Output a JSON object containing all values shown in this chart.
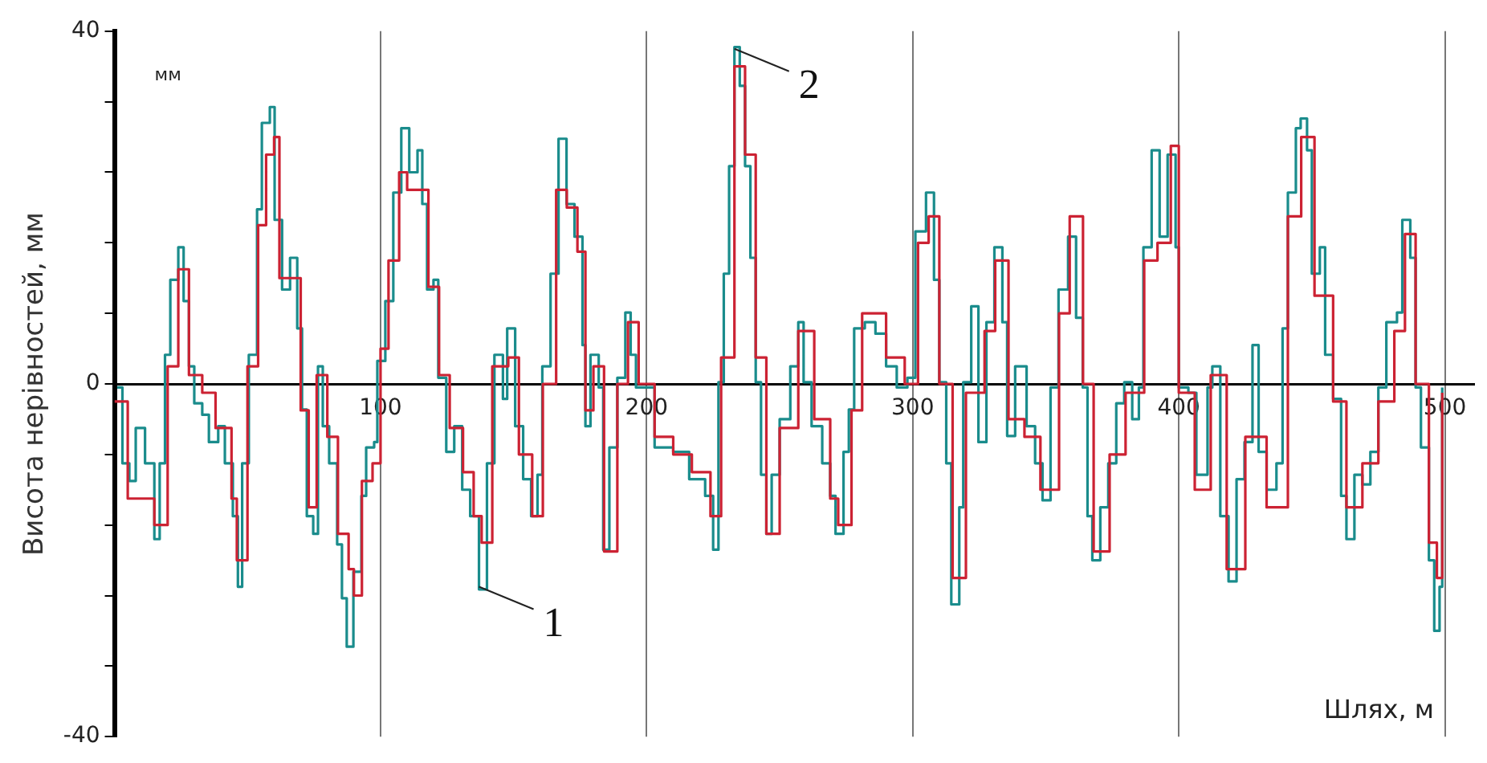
{
  "chart_data": {
    "type": "step",
    "ylabel": "Висота нерівностей, мм",
    "xlabel": "Шлях, м",
    "xlim": [
      0,
      511
    ],
    "xticks": [
      100,
      200,
      300,
      400,
      500
    ],
    "ylim": [
      -40,
      40
    ],
    "yticks": [
      -40,
      {
        "value": -32,
        "label": null
      },
      {
        "value": -24,
        "label": null
      },
      {
        "value": -16,
        "label": null
      },
      {
        "value": -8,
        "label": null
      },
      0,
      {
        "value": 8,
        "label": null
      },
      {
        "value": 16,
        "label": null
      },
      {
        "value": 24,
        "label": null
      },
      {
        "value": 32,
        "label": null
      },
      40
    ],
    "grid": "x",
    "legend": false,
    "marker": "none",
    "line_style": "solid",
    "annotations": [
      "мм",
      {
        "text": "1",
        "x": 137,
        "y": -23
      },
      {
        "text": "2",
        "x": 233,
        "y": 38
      }
    ],
    "series": [
      {
        "color": "#cc2233",
        "x": [
          0,
          5,
          15,
          20,
          24,
          28,
          33,
          38,
          44,
          46,
          50,
          54,
          57,
          60,
          62,
          66,
          70,
          73,
          76,
          80,
          84,
          88,
          90,
          93,
          97,
          100,
          103,
          107,
          110,
          114,
          118,
          122,
          126,
          131,
          135,
          138,
          142,
          148,
          152,
          157,
          161,
          166,
          170,
          174,
          177,
          180,
          184,
          189,
          193,
          197,
          203,
          210,
          217,
          224,
          228,
          233,
          237,
          241,
          245,
          250,
          257,
          263,
          269,
          272,
          277,
          281,
          290,
          297,
          302,
          306,
          310,
          315,
          320,
          327,
          331,
          336,
          342,
          348,
          355,
          359,
          364,
          368,
          374,
          380,
          387,
          392,
          397,
          400,
          406,
          412,
          418,
          425,
          433,
          441,
          446,
          451,
          458,
          463,
          469,
          475,
          481,
          485,
          489,
          494,
          497,
          499
        ],
        "values": [
          -2,
          -13,
          -16,
          2,
          13,
          1,
          -1,
          -5,
          -13,
          -20,
          2,
          18,
          26,
          28,
          12,
          12,
          -3,
          -14,
          1,
          -6,
          -17,
          -21,
          -24,
          -11,
          -9,
          4,
          14,
          24,
          22,
          22,
          11,
          1,
          -5,
          -10,
          -15,
          -18,
          2,
          3,
          -8,
          -15,
          0,
          22,
          20,
          15,
          -3,
          2,
          -19,
          0,
          7,
          0,
          -6,
          -8,
          -10,
          -15,
          3,
          36,
          26,
          3,
          -17,
          -5,
          6,
          -4,
          -13,
          -16,
          -3,
          8,
          3,
          0,
          16,
          19,
          0,
          -22,
          -1,
          6,
          14,
          -4,
          -6,
          -12,
          8,
          19,
          0,
          -19,
          -8,
          -1,
          14,
          16,
          27,
          -1,
          -12,
          1,
          -21,
          -6,
          -14,
          19,
          28,
          10,
          -2,
          -14,
          -9,
          -2,
          6,
          17,
          0,
          -18,
          -22,
          -1
        ]
      },
      {
        "color": "#1a8c8c",
        "x": [
          1,
          3,
          5.6,
          8,
          11.5,
          15,
          17,
          19,
          21,
          24,
          26,
          28,
          30,
          33,
          35.5,
          39,
          41.5,
          44.5,
          46.4,
          48,
          50.5,
          53.6,
          55.4,
          58.4,
          60.2,
          63,
          66,
          68.7,
          70.5,
          72.3,
          74.7,
          76.5,
          78.3,
          80.7,
          83.7,
          85.5,
          87.3,
          89.8,
          92.8,
          94.6,
          97.6,
          98.8,
          101.8,
          104.8,
          107.8,
          110.8,
          113.9,
          115.7,
          117.5,
          119.9,
          121.7,
          124.7,
          127.7,
          130.7,
          133.7,
          137,
          140,
          142.8,
          146,
          147.6,
          150.6,
          153.6,
          156.6,
          159,
          160.8,
          163.9,
          166.9,
          169.9,
          172.9,
          175.9,
          177,
          178.9,
          182,
          183.7,
          186,
          189,
          192,
          194,
          196,
          200,
          203,
          210,
          216,
          222,
          225,
          227,
          229,
          231,
          233,
          235,
          237,
          239,
          241,
          243,
          245,
          247,
          250,
          254,
          257,
          259,
          262,
          266,
          269,
          271,
          274,
          276,
          278,
          282,
          286,
          290,
          294,
          298,
          301,
          305,
          308,
          310,
          312.6,
          314.5,
          317.5,
          319,
          322,
          324.7,
          327.7,
          330.7,
          333.7,
          335.5,
          338.5,
          342.8,
          346,
          348.8,
          351.8,
          354.8,
          358.4,
          361.4,
          363.9,
          365.7,
          367.5,
          370.5,
          373.5,
          376.5,
          379.5,
          382.5,
          385,
          386.7,
          389.8,
          392.8,
          395.8,
          398.8,
          400,
          403.6,
          406.6,
          410.8,
          412.6,
          415.6,
          418.7,
          421.7,
          424.7,
          427.7,
          430,
          433,
          436.7,
          439,
          441,
          444,
          445.8,
          448.2,
          450,
          453,
          455,
          458,
          461,
          463,
          466,
          469,
          472,
          475,
          478,
          482,
          484,
          487,
          489,
          491,
          494,
          496,
          498,
          499
        ],
        "values": [
          -0.4,
          -9,
          -11,
          -5,
          -9,
          -17.6,
          -9,
          3.3,
          11.8,
          15.5,
          9.4,
          2,
          -2.2,
          -3.5,
          -6.6,
          -4.8,
          -9,
          -15,
          -23,
          -9,
          3.3,
          19.8,
          29.6,
          31.4,
          18.6,
          10.7,
          14.3,
          6.3,
          -2.9,
          -15,
          -17,
          2,
          -4.8,
          -9,
          -18.2,
          -24.3,
          -29.8,
          -21.3,
          -12.7,
          -7.2,
          -6.6,
          2.6,
          9.4,
          21.7,
          29,
          24,
          26.5,
          20.4,
          10.7,
          11.8,
          0.7,
          -7.7,
          -4.8,
          -12,
          -15,
          -23.3,
          -9,
          3.3,
          -1.7,
          6.3,
          -4.8,
          -10.8,
          -15,
          -10.3,
          2,
          12.5,
          27.8,
          20.4,
          16.7,
          4.4,
          -4.8,
          3.3,
          -0.4,
          -18.8,
          -7.2,
          0.7,
          8.1,
          3.3,
          -0.4,
          -0.4,
          -7.2,
          -7.7,
          -10.8,
          -12.7,
          -18.8,
          0.2,
          12.5,
          24.7,
          38.2,
          33.8,
          24.7,
          14.3,
          0.2,
          -10.3,
          -17,
          -10.3,
          -4,
          2,
          7,
          0.2,
          -4.8,
          -9,
          -12.7,
          -17,
          -7.7,
          -2.9,
          6.3,
          7,
          5.7,
          2,
          -0.4,
          0.7,
          17.3,
          21.7,
          11.8,
          0.2,
          -9,
          -25,
          -14,
          0.2,
          8.8,
          -6.6,
          7,
          15.5,
          7,
          -5.9,
          2,
          -4.8,
          -9,
          -13.2,
          -0.4,
          10.7,
          16.7,
          7.5,
          -0.4,
          -15,
          -20,
          -14,
          -9,
          -2.2,
          0.2,
          -4,
          -0.4,
          15.5,
          26.5,
          16.7,
          26,
          15.5,
          -0.4,
          -1,
          -10.3,
          -0.4,
          2,
          -15,
          -22.4,
          -10.8,
          -6.6,
          4.4,
          -7.7,
          -12,
          -9,
          6.3,
          21.7,
          29,
          30.1,
          26.5,
          12.5,
          15.5,
          3.3,
          -1.7,
          -12.7,
          -17.6,
          -10.3,
          -11.4,
          -7.7,
          -0.4,
          7,
          8.1,
          18.6,
          14.3,
          -0.4,
          -7.2,
          -20,
          -28,
          -23,
          -0.4
        ]
      }
    ]
  }
}
